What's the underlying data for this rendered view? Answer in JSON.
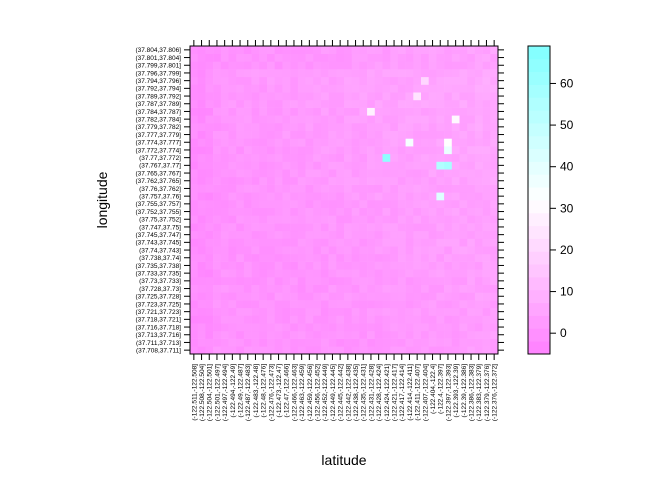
{
  "chart_data": {
    "type": "heatmap",
    "title": "",
    "xlabel": "latitude",
    "ylabel": "longitude",
    "x_categories": [
      "(-122.511,-122.508]",
      "(-122.508,-122.504]",
      "(-122.504,-122.501]",
      "(-122.501,-122.497]",
      "(-122.497,-122.494]",
      "(-122.494,-122.49]",
      "(-122.49,-122.487]",
      "(-122.487,-122.483]",
      "(-122.483,-122.48]",
      "(-122.48,-122.476]",
      "(-122.476,-122.473]",
      "(-122.473,-122.47]",
      "(-122.47,-122.466]",
      "(-122.466,-122.463]",
      "(-122.463,-122.459]",
      "(-122.459,-122.456]",
      "(-122.456,-122.452]",
      "(-122.452,-122.449]",
      "(-122.449,-122.445]",
      "(-122.445,-122.442]",
      "(-122.442,-122.438]",
      "(-122.438,-122.435]",
      "(-122.435,-122.431]",
      "(-122.431,-122.428]",
      "(-122.428,-122.424]",
      "(-122.424,-122.421]",
      "(-122.421,-122.417]",
      "(-122.417,-122.414]",
      "(-122.414,-122.411]",
      "(-122.411,-122.407]",
      "(-122.407,-122.404]",
      "(-122.404,-122.4]",
      "(-122.4,-122.397]",
      "(-122.397,-122.393]",
      "(-122.393,-122.39]",
      "(-122.39,-122.386]",
      "(-122.386,-122.383]",
      "(-122.383,-122.379]",
      "(-122.379,-122.376]",
      "(-122.376,-122.372]"
    ],
    "y_categories": [
      "(37.708,37.711]",
      "(37.711,37.713]",
      "(37.713,37.716]",
      "(37.716,37.718]",
      "(37.718,37.721]",
      "(37.721,37.723]",
      "(37.723,37.725]",
      "(37.725,37.728]",
      "(37.728,37.73]",
      "(37.73,37.733]",
      "(37.733,37.735]",
      "(37.735,37.738]",
      "(37.738,37.74]",
      "(37.74,37.743]",
      "(37.743,37.745]",
      "(37.745,37.747]",
      "(37.747,37.75]",
      "(37.75,37.752]",
      "(37.752,37.755]",
      "(37.755,37.757]",
      "(37.757,37.76]",
      "(37.76,37.762]",
      "(37.762,37.765]",
      "(37.765,37.767]",
      "(37.767,37.77]",
      "(37.77,37.772]",
      "(37.772,37.774]",
      "(37.774,37.777]",
      "(37.777,37.779]",
      "(37.779,37.782]",
      "(37.782,37.784]",
      "(37.784,37.787]",
      "(37.787,37.789]",
      "(37.789,37.792]",
      "(37.792,37.794]",
      "(37.794,37.796]",
      "(37.796,37.799]",
      "(37.799,37.801]",
      "(37.801,37.804]",
      "(37.804,37.806]"
    ],
    "hotspots": [
      {
        "x": 25,
        "y": 25,
        "value": 65
      },
      {
        "x": 32,
        "y": 24,
        "value": 55
      },
      {
        "x": 33,
        "y": 24,
        "value": 58
      },
      {
        "x": 32,
        "y": 20,
        "value": 42
      },
      {
        "x": 33,
        "y": 26,
        "value": 38
      },
      {
        "x": 28,
        "y": 27,
        "value": 35
      },
      {
        "x": 33,
        "y": 27,
        "value": 32
      },
      {
        "x": 34,
        "y": 30,
        "value": 30
      },
      {
        "x": 23,
        "y": 31,
        "value": 28
      },
      {
        "x": 29,
        "y": 33,
        "value": 24
      },
      {
        "x": 30,
        "y": 35,
        "value": 20
      }
    ],
    "colorbar": {
      "ticks": [
        0,
        10,
        20,
        30,
        40,
        50,
        60
      ],
      "range": [
        -5,
        69
      ],
      "colors": {
        "low": "#ff80ff",
        "mid": "#ffffff",
        "high": "#80ffff"
      }
    },
    "grid": false
  }
}
